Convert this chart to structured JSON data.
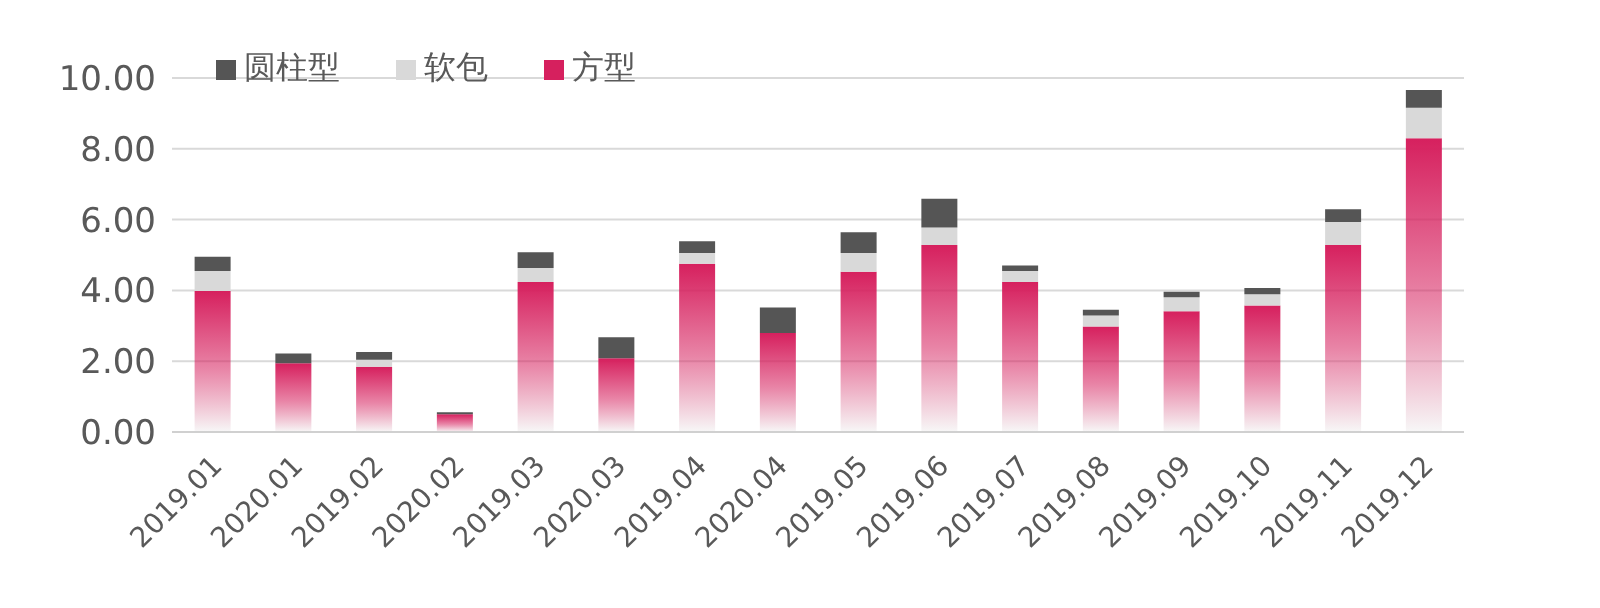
{
  "chart_data": {
    "type": "bar",
    "stacked": true,
    "categories": [
      "2019.01",
      "2020.01",
      "2019.02",
      "2020.02",
      "2019.03",
      "2020.03",
      "2019.04",
      "2020.04",
      "2019.05",
      "2019.06",
      "2019.07",
      "2019.08",
      "2019.09",
      "2019.10",
      "2019.11",
      "2019.12"
    ],
    "series": [
      {
        "name": "方型",
        "color": "#d6205e",
        "values": [
          3.98,
          1.94,
          1.84,
          0.5,
          4.24,
          2.08,
          4.75,
          2.8,
          4.53,
          5.28,
          4.24,
          2.98,
          3.41,
          3.57,
          5.28,
          8.3
        ]
      },
      {
        "name": "软包",
        "color": "#d9d9d9",
        "values": [
          0.57,
          null,
          0.2,
          null,
          0.39,
          null,
          0.31,
          null,
          0.53,
          0.5,
          0.31,
          0.31,
          0.4,
          0.32,
          0.65,
          0.86
        ]
      },
      {
        "name": "圆柱型",
        "color": "#555555",
        "values": [
          0.4,
          0.28,
          0.22,
          0.06,
          0.45,
          0.6,
          0.33,
          0.72,
          0.58,
          0.81,
          0.15,
          0.16,
          0.15,
          0.18,
          0.36,
          0.5
        ]
      }
    ],
    "ylim": [
      0,
      10
    ],
    "yticks": [
      {
        "value": 0,
        "label": "0.00"
      },
      {
        "value": 2,
        "label": "2.00"
      },
      {
        "value": 4,
        "label": "4.00"
      },
      {
        "value": 6,
        "label": "6.00"
      },
      {
        "value": 8,
        "label": "8.00"
      },
      {
        "value": 10,
        "label": "10.00"
      }
    ],
    "grid": "y",
    "legend": "top left"
  }
}
